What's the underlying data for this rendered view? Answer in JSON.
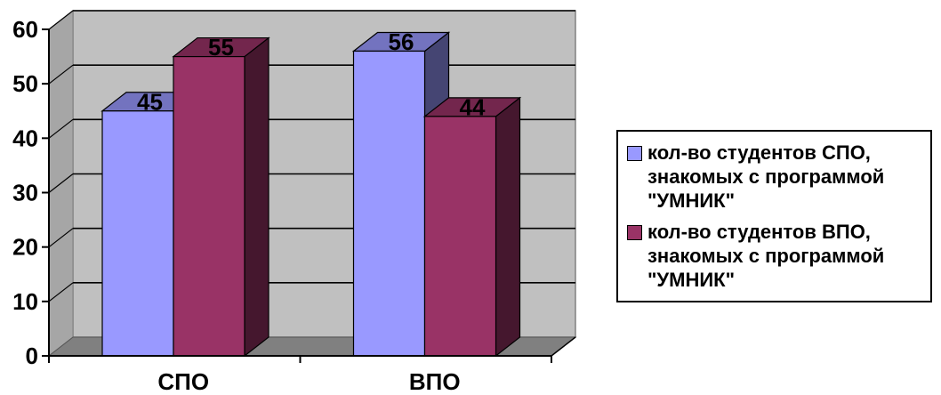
{
  "chart_data": {
    "type": "bar",
    "categories": [
      "СПО",
      "ВПО"
    ],
    "series": [
      {
        "name": "кол-во студентов СПО, знакомых с программой \"УМНИК\"",
        "values": [
          45,
          56
        ],
        "color": "#9999ff"
      },
      {
        "name": "кол-во студентов ВПО, знакомых с программой \"УМНИК\"",
        "values": [
          55,
          44
        ],
        "color": "#993366"
      }
    ],
    "ylim": [
      0,
      60
    ],
    "yticks": [
      "0",
      "10",
      "20",
      "30",
      "40",
      "50",
      "60"
    ],
    "grid": true,
    "legend_position": "right",
    "style": "3d-clustered-column",
    "wall_color": "#c0c0c0",
    "floor_color": "#808080"
  }
}
